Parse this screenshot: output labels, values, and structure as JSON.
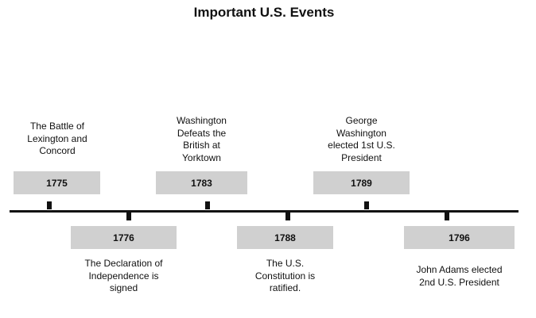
{
  "title": "Important U.S. Events",
  "events": [
    {
      "year": "1775",
      "lines": [
        "The Battle of",
        "Lexington and",
        "Concord"
      ]
    },
    {
      "year": "1776",
      "lines": [
        "The Declaration of",
        "Independence is",
        "signed"
      ]
    },
    {
      "year": "1783",
      "lines": [
        "Washington",
        "Defeats the",
        "British at",
        "Yorktown"
      ]
    },
    {
      "year": "1788",
      "lines": [
        "The U.S.",
        "Constitution is",
        "ratified."
      ]
    },
    {
      "year": "1789",
      "lines": [
        "George",
        "Washington",
        "elected 1st U.S.",
        "President"
      ]
    },
    {
      "year": "1796",
      "lines": [
        "John Adams elected",
        "2nd U.S. President"
      ]
    }
  ]
}
